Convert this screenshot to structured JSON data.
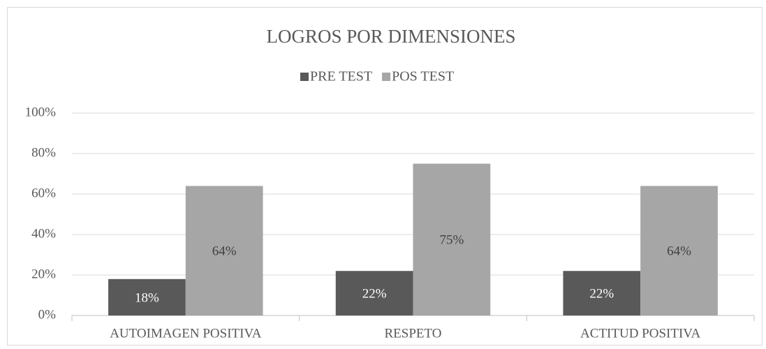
{
  "chart_data": {
    "type": "bar",
    "title": "LOGROS POR DIMENSIONES",
    "categories": [
      "AUTOIMAGEN POSITIVA",
      "RESPETO",
      "ACTITUD POSITIVA"
    ],
    "series": [
      {
        "name": "PRE TEST",
        "color": "#595959",
        "values": [
          18,
          22,
          22
        ],
        "value_labels": [
          "18%",
          "22%",
          "22%"
        ]
      },
      {
        "name": "POS TEST",
        "color": "#a6a6a6",
        "values": [
          64,
          75,
          64
        ],
        "value_labels": [
          "64%",
          "75%",
          "64%"
        ]
      }
    ],
    "ylim": [
      0,
      100
    ],
    "yticks": [
      {
        "value": 0,
        "label": "0%"
      },
      {
        "value": 20,
        "label": "20%"
      },
      {
        "value": 40,
        "label": "40%"
      },
      {
        "value": 60,
        "label": "60%"
      },
      {
        "value": 80,
        "label": "80%"
      },
      {
        "value": 100,
        "label": "100%"
      }
    ],
    "grid": true,
    "legend": "top"
  }
}
